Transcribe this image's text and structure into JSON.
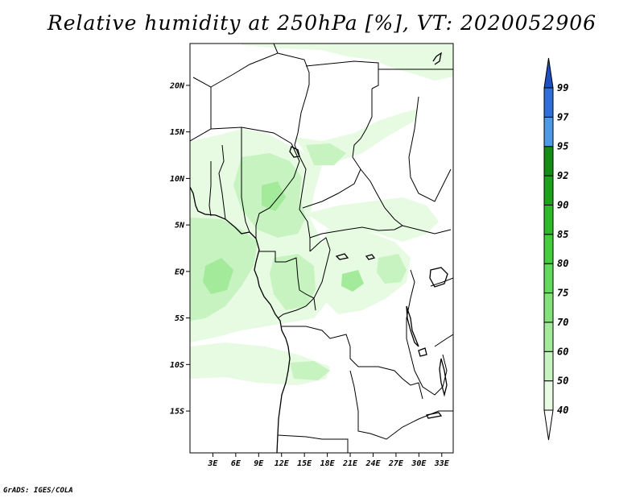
{
  "title": "Relative humidity at 250hPa [%], VT: 2020052906",
  "credit": "GrADS: IGES/COLA",
  "map": {
    "lat_range": [
      -19.5,
      24.5
    ],
    "lon_range": [
      0,
      34.5
    ],
    "lat_ticks": [
      {
        "value": 20,
        "label": "20N"
      },
      {
        "value": 15,
        "label": "15N"
      },
      {
        "value": 10,
        "label": "10N"
      },
      {
        "value": 5,
        "label": "5N"
      },
      {
        "value": 0,
        "label": "EQ"
      },
      {
        "value": -5,
        "label": "5S"
      },
      {
        "value": -10,
        "label": "10S"
      },
      {
        "value": -15,
        "label": "15S"
      }
    ],
    "lon_ticks": [
      {
        "value": 3,
        "label": "3E"
      },
      {
        "value": 6,
        "label": "6E"
      },
      {
        "value": 9,
        "label": "9E"
      },
      {
        "value": 12,
        "label": "12E"
      },
      {
        "value": 15,
        "label": "15E"
      },
      {
        "value": 18,
        "label": "18E"
      },
      {
        "value": 21,
        "label": "21E"
      },
      {
        "value": 24,
        "label": "24E"
      },
      {
        "value": 27,
        "label": "27E"
      },
      {
        "value": 30,
        "label": "30E"
      },
      {
        "value": 33,
        "label": "33E"
      }
    ]
  },
  "colorbar": {
    "levels": [
      40,
      50,
      60,
      70,
      75,
      80,
      85,
      90,
      92,
      95,
      97,
      99
    ],
    "colors": [
      "#ffffff",
      "#e6fbe2",
      "#c6f3bf",
      "#a3eb9b",
      "#84e27c",
      "#63d85c",
      "#45cc3f",
      "#2fba2c",
      "#1da21c",
      "#148d14",
      "#4f9ae6",
      "#2e6fd8",
      "#1d4fbf"
    ]
  },
  "shading_colors": {
    "light": "#e6fbe2",
    "mid": "#c6f3bf",
    "strong": "#a3eb9b"
  }
}
